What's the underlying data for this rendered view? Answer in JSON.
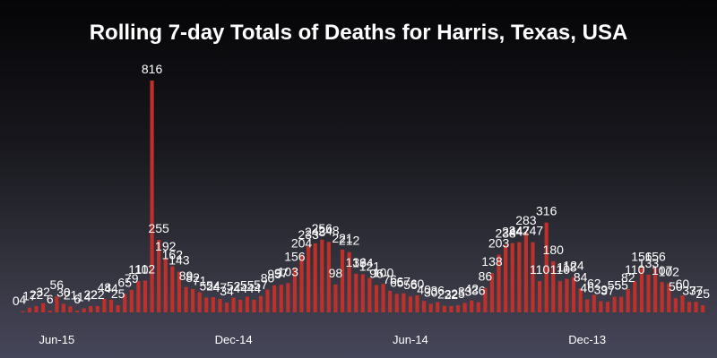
{
  "chart_data": {
    "type": "bar",
    "title": "Rolling 7-day Totals of Deaths for Harris, Texas, USA",
    "xlabel": "",
    "ylabel": "",
    "bar_color": "#c0302a",
    "ylim": [
      0,
      850
    ],
    "tick_labels": [
      {
        "label": "Jun-15",
        "index": 6
      },
      {
        "label": "Dec-14",
        "index": 32
      },
      {
        "label": "Jun-14",
        "index": 58
      },
      {
        "label": "Dec-13",
        "index": 84
      }
    ],
    "values": [
      0,
      4,
      17,
      22,
      32,
      6,
      56,
      30,
      21,
      6,
      14,
      22,
      22,
      48,
      44,
      25,
      65,
      79,
      110,
      112,
      816,
      255,
      192,
      162,
      143,
      89,
      82,
      71,
      52,
      54,
      47,
      34,
      52,
      44,
      55,
      44,
      57,
      80,
      95,
      97,
      103,
      156,
      204,
      233,
      243,
      256,
      248,
      98,
      221,
      212,
      136,
      134,
      121,
      96,
      100,
      76,
      65,
      67,
      56,
      60,
      40,
      30,
      36,
      23,
      22,
      25,
      33,
      42,
      36,
      86,
      138,
      203,
      238,
      244,
      247,
      283,
      247,
      110,
      316,
      180,
      110,
      118,
      124,
      84,
      46,
      62,
      39,
      37,
      55,
      55,
      82,
      110,
      156,
      133,
      156,
      107,
      102,
      50,
      60,
      37,
      37,
      25
    ],
    "labeled_indices": [
      0,
      1,
      2,
      3,
      4,
      5,
      6,
      7,
      8,
      9,
      10,
      11,
      12,
      13,
      14,
      15,
      16,
      17,
      18,
      19,
      20,
      21,
      22,
      23,
      24,
      25,
      26,
      27,
      28,
      29,
      30,
      31,
      32,
      33,
      34,
      35,
      36,
      37,
      38,
      39,
      40,
      41,
      42,
      43,
      44,
      45,
      46,
      47,
      48,
      49,
      50,
      51,
      52,
      53,
      54,
      55,
      56,
      57,
      58,
      59,
      60,
      61,
      62,
      63,
      64,
      65,
      66,
      67,
      68,
      69,
      70,
      71,
      72,
      73,
      74,
      75,
      76,
      77,
      78,
      79,
      80,
      81,
      82,
      83,
      84,
      85,
      86,
      87,
      88,
      89,
      90,
      91,
      92,
      93,
      94,
      95,
      96,
      97,
      98,
      99,
      100,
      101
    ]
  }
}
